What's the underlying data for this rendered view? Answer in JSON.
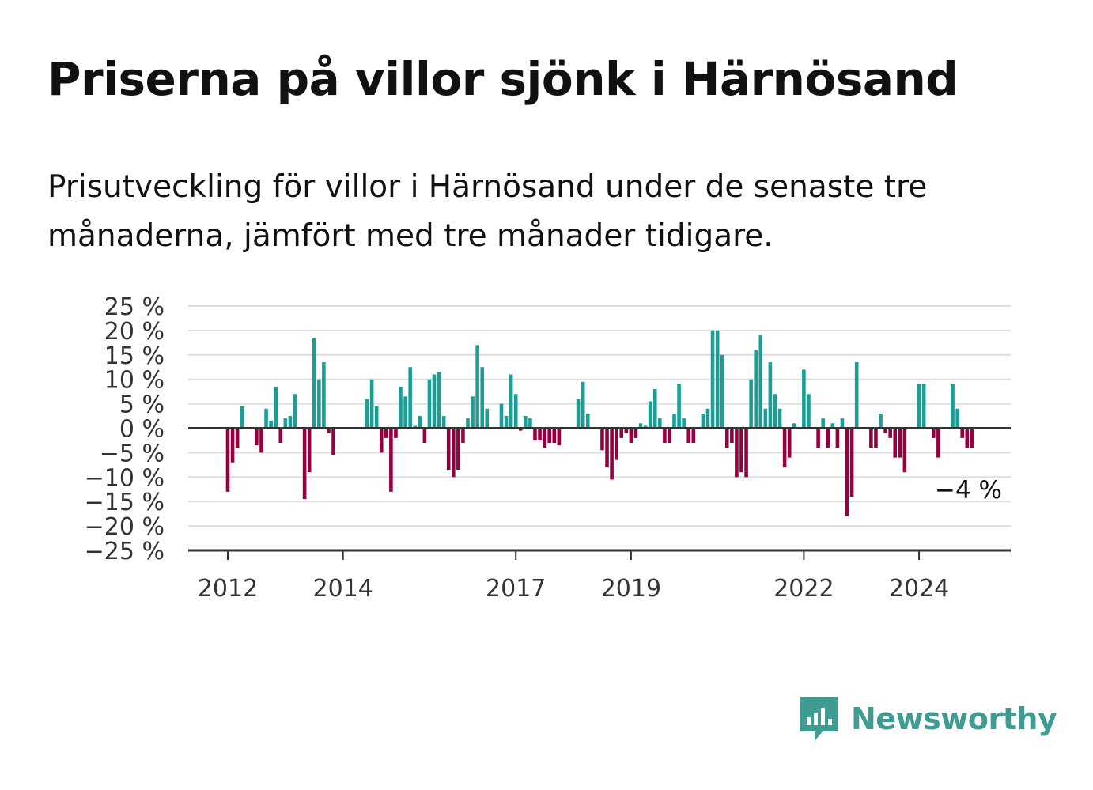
{
  "title": "Priserna på villor sjönk i Härnösand",
  "subtitle": "Prisutveckling för villor i Härnösand under de senaste tre månaderna, jämfört med tre månader tidigare.",
  "brand": {
    "name": "Newsworthy",
    "icon": "newsworthy-logo-icon"
  },
  "colors": {
    "positive": "#1a9e96",
    "negative": "#960040",
    "grid": "#dddddd",
    "axis": "#333333",
    "brand": "#3f9c93"
  },
  "chart_data": {
    "type": "bar",
    "x_start": "2012-01",
    "x_end": "2025-03",
    "x_ticks": [
      "2012",
      "2014",
      "2017",
      "2019",
      "2022",
      "2024"
    ],
    "x_tick_dates": [
      "2012-01",
      "2014-01",
      "2017-01",
      "2019-01",
      "2022-01",
      "2024-01"
    ],
    "y_ticks": [
      "25 %",
      "20 %",
      "15 %",
      "10 %",
      "5 %",
      "0 %",
      "−5 %",
      "−10 %",
      "−15 %",
      "−20 %",
      "−25 %"
    ],
    "ylim": [
      -25,
      25
    ],
    "grid": true,
    "end_label": "−4 %",
    "series": [
      {
        "values": [
          -13,
          -7,
          -4,
          4.5,
          0,
          0,
          -3.5,
          -5,
          4,
          1.5,
          8.5,
          -3,
          2,
          2.5,
          7,
          0,
          -14.5,
          -9,
          18.5,
          10,
          13.5,
          -1,
          -5.5,
          0,
          0,
          0,
          0,
          0,
          0,
          6,
          10,
          4.5,
          -5,
          -2,
          -13,
          -2,
          8.5,
          6.5,
          12.5,
          0.5,
          2.5,
          -3,
          10,
          11,
          11.5,
          2.5,
          -8.5,
          -10,
          -8.5,
          -3,
          2,
          6.5,
          17,
          12.5,
          4,
          0,
          0,
          5,
          2.5,
          11,
          7,
          -0.5,
          2.5,
          2,
          -2.5,
          -2.5,
          -4,
          -3,
          -3,
          -3.5,
          0,
          0,
          0,
          6,
          9.5,
          3,
          0,
          0,
          -4.5,
          -8,
          -10.5,
          -6.5,
          -2,
          -1,
          -3,
          -2,
          1,
          0.5,
          5.5,
          8,
          2,
          -3,
          -3,
          3,
          9,
          2,
          -3,
          -3,
          0,
          3,
          4,
          20,
          20,
          15,
          -4,
          -3,
          -10,
          -9,
          -10,
          10,
          16,
          19,
          4,
          13.5,
          7,
          4,
          -8,
          -6,
          1,
          0,
          12,
          7,
          0,
          -4,
          2,
          -4,
          1,
          -4,
          2,
          -18,
          -14,
          13.5,
          0,
          0,
          -4,
          -4,
          3,
          -1,
          -2,
          -6,
          -6,
          -9,
          0,
          0,
          9,
          9,
          0,
          -2,
          -6,
          0,
          0,
          9,
          4,
          -2,
          -4,
          -4
        ]
      }
    ]
  }
}
